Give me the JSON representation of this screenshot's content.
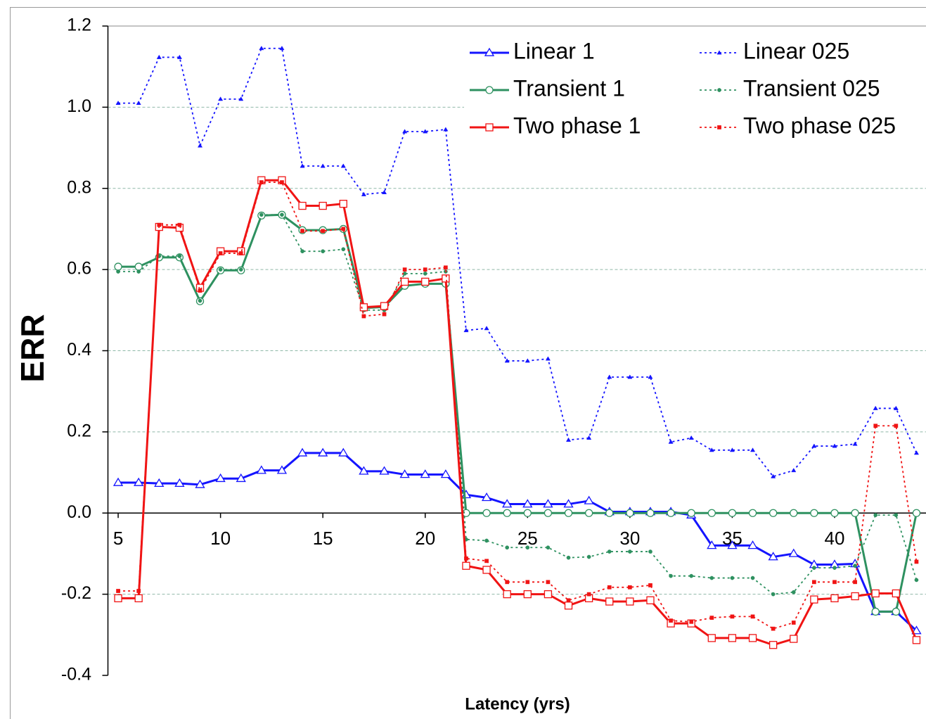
{
  "chart_data": {
    "type": "line",
    "x_label": "Latency (yrs)",
    "y_label": "ERR",
    "x": [
      5,
      6,
      7,
      8,
      9,
      10,
      11,
      12,
      13,
      14,
      15,
      16,
      17,
      18,
      19,
      20,
      21,
      22,
      23,
      24,
      25,
      26,
      27,
      28,
      29,
      30,
      31,
      32,
      33,
      34,
      35,
      36,
      37,
      38,
      39,
      40,
      41,
      42,
      43,
      44
    ],
    "xlim": [
      4.5,
      44.5
    ],
    "xticks": [
      5,
      10,
      15,
      20,
      25,
      30,
      35,
      40
    ],
    "ylim": [
      -0.4,
      1.2
    ],
    "yticks": [
      -0.4,
      -0.2,
      {
        "value": 0,
        "label": "0.0"
      },
      0.2,
      0.4,
      0.6,
      0.8,
      {
        "value": 1,
        "label": "1.0"
      },
      1.2
    ],
    "grid": true,
    "legend": "top-right",
    "series": [
      {
        "name": "Linear 1",
        "color": "#1414ff",
        "line_style": "solid",
        "marker": "triangle",
        "marker_fill": "open",
        "values": [
          0.075,
          0.075,
          0.073,
          0.073,
          0.07,
          0.085,
          0.085,
          0.105,
          0.105,
          0.148,
          0.148,
          0.148,
          0.103,
          0.103,
          0.095,
          0.095,
          0.095,
          0.045,
          0.038,
          0.022,
          0.022,
          0.022,
          0.022,
          0.03,
          0.003,
          0.003,
          0.003,
          0.003,
          -0.005,
          -0.08,
          -0.08,
          -0.08,
          -0.108,
          -0.1,
          -0.127,
          -0.127,
          -0.125,
          -0.243,
          -0.243,
          -0.29
        ]
      },
      {
        "name": "Linear 025",
        "color": "#1414ff",
        "line_style": "dotted",
        "marker": "triangle",
        "marker_fill": "filled",
        "values": [
          1.01,
          1.01,
          1.123,
          1.123,
          0.905,
          1.02,
          1.02,
          1.145,
          1.145,
          0.855,
          0.855,
          0.855,
          0.785,
          0.79,
          0.94,
          0.94,
          0.945,
          0.45,
          0.455,
          0.375,
          0.375,
          0.38,
          0.18,
          0.185,
          0.335,
          0.335,
          0.335,
          0.175,
          0.185,
          0.155,
          0.155,
          0.155,
          0.09,
          0.105,
          0.165,
          0.165,
          0.17,
          0.258,
          0.258,
          0.148
        ]
      },
      {
        "name": "Transient 1",
        "color": "#2e9160",
        "line_style": "solid",
        "marker": "circle",
        "marker_fill": "open",
        "values": [
          0.607,
          0.607,
          0.63,
          0.63,
          0.522,
          0.598,
          0.598,
          0.733,
          0.735,
          0.697,
          0.697,
          0.7,
          0.505,
          0.508,
          0.56,
          0.565,
          0.565,
          0,
          0,
          0,
          0,
          0,
          0,
          0,
          0,
          0,
          0,
          0,
          0,
          0,
          0,
          0,
          0,
          0,
          0,
          0,
          0,
          -0.243,
          -0.243,
          0
        ]
      },
      {
        "name": "Transient 025",
        "color": "#2e9160",
        "line_style": "dotted",
        "marker": "circle",
        "marker_fill": "filled",
        "values": [
          0.595,
          0.595,
          0.633,
          0.633,
          0.523,
          0.6,
          0.6,
          0.735,
          0.735,
          0.645,
          0.645,
          0.65,
          0.5,
          0.5,
          0.59,
          0.59,
          0.595,
          -0.065,
          -0.068,
          -0.085,
          -0.085,
          -0.085,
          -0.11,
          -0.108,
          -0.095,
          -0.095,
          -0.095,
          -0.155,
          -0.155,
          -0.16,
          -0.16,
          -0.16,
          -0.2,
          -0.195,
          -0.135,
          -0.135,
          -0.13,
          -0.005,
          -0.005,
          -0.165
        ]
      },
      {
        "name": "Two phase 1",
        "color": "#f01414",
        "line_style": "solid",
        "marker": "square",
        "marker_fill": "open",
        "values": [
          -0.21,
          -0.21,
          0.705,
          0.703,
          0.555,
          0.645,
          0.645,
          0.82,
          0.82,
          0.757,
          0.757,
          0.762,
          0.507,
          0.51,
          0.57,
          0.57,
          0.578,
          -0.13,
          -0.14,
          -0.2,
          -0.2,
          -0.2,
          -0.228,
          -0.21,
          -0.218,
          -0.218,
          -0.215,
          -0.272,
          -0.272,
          -0.308,
          -0.308,
          -0.308,
          -0.325,
          -0.31,
          -0.213,
          -0.21,
          -0.205,
          -0.198,
          -0.198,
          -0.313
        ]
      },
      {
        "name": "Two phase 025",
        "color": "#f01414",
        "line_style": "dotted",
        "marker": "square",
        "marker_fill": "filled",
        "values": [
          -0.192,
          -0.192,
          0.71,
          0.71,
          0.548,
          0.64,
          0.64,
          0.815,
          0.815,
          0.695,
          0.695,
          0.7,
          0.485,
          0.49,
          0.6,
          0.6,
          0.605,
          -0.112,
          -0.118,
          -0.17,
          -0.17,
          -0.17,
          -0.215,
          -0.2,
          -0.183,
          -0.183,
          -0.178,
          -0.265,
          -0.268,
          -0.258,
          -0.255,
          -0.255,
          -0.285,
          -0.27,
          -0.17,
          -0.17,
          -0.17,
          0.215,
          0.215,
          -0.12
        ]
      }
    ]
  }
}
